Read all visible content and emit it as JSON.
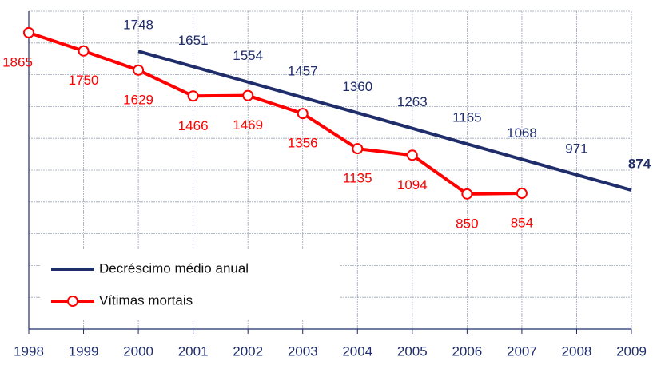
{
  "chart_data": {
    "type": "line",
    "categories": [
      "1998",
      "1999",
      "2000",
      "2001",
      "2002",
      "2003",
      "2004",
      "2005",
      "2006",
      "2007",
      "2008",
      "2009"
    ],
    "series": [
      {
        "name": "Decréscimo médio anual",
        "color": "#1f2d6b",
        "marker": false,
        "values": [
          null,
          null,
          1748,
          1651,
          1554,
          1457,
          1360,
          1263,
          1165,
          1068,
          971,
          874
        ]
      },
      {
        "name": "Vítimas mortais",
        "color": "#ff0000",
        "marker": true,
        "values": [
          1865,
          1750,
          1629,
          1466,
          1469,
          1356,
          1135,
          1094,
          850,
          854,
          null,
          null
        ]
      }
    ],
    "ylim": [
      0,
      2000
    ],
    "yticks": [
      0,
      200,
      400,
      600,
      800,
      1000,
      1200,
      1400,
      1600,
      1800,
      2000
    ],
    "grid": true,
    "legend": "lower left"
  }
}
